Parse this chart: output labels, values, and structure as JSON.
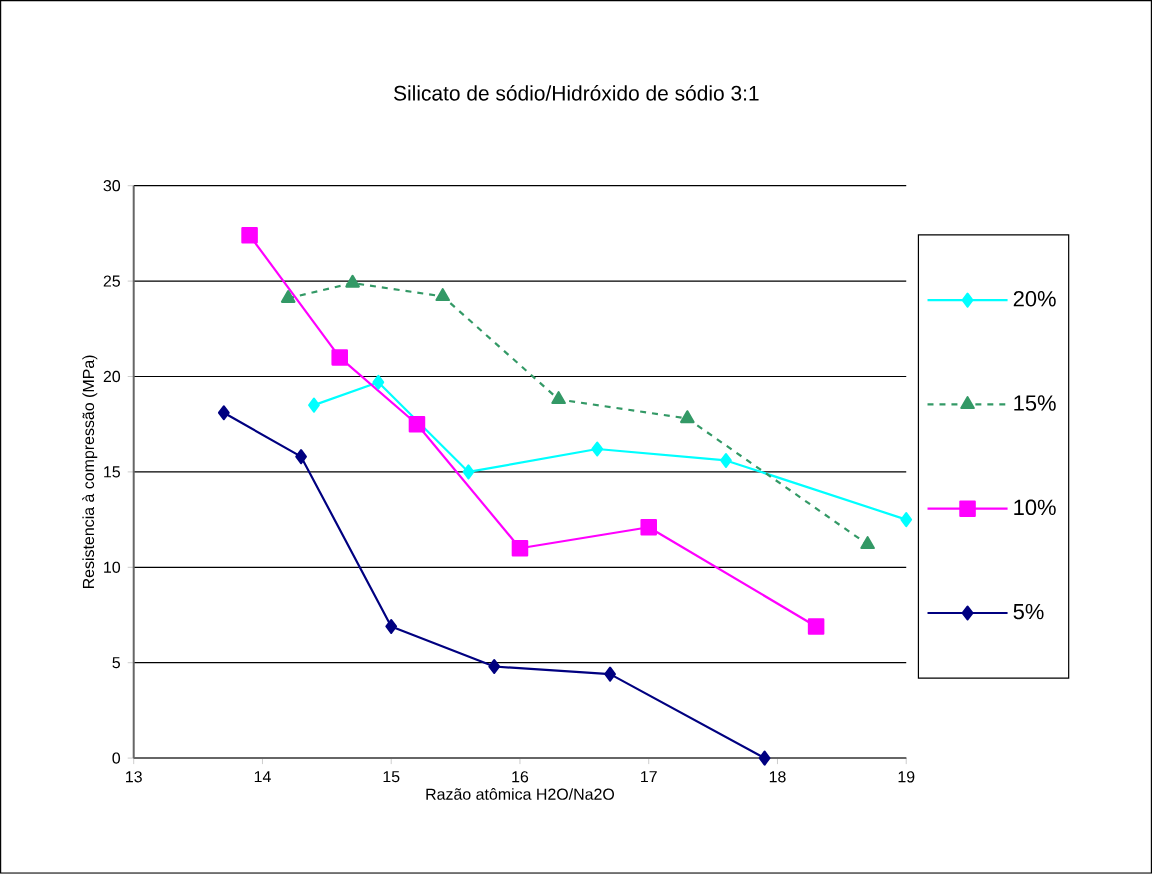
{
  "chart_data": {
    "type": "line",
    "title": "Silicato de sódio/Hidróxido de sódio 3:1",
    "xlabel": "Razão atômica H2O/Na2O",
    "ylabel": "Resistencia à compressão (MPa)",
    "xlim": [
      13,
      19
    ],
    "xticks": [
      13,
      14,
      15,
      16,
      17,
      18,
      19
    ],
    "ylim": [
      0,
      30
    ],
    "yticks": [
      0,
      5,
      10,
      15,
      20,
      25,
      30
    ],
    "grid": "y",
    "legend": "right",
    "series": [
      {
        "name": "20%",
        "color": "#00ffff",
        "marker": "diamond",
        "line_style": "solid",
        "x": [
          14.4,
          14.9,
          15.6,
          16.6,
          17.6,
          19.0
        ],
        "values": [
          18.5,
          19.7,
          15.0,
          16.2,
          15.6,
          12.5
        ]
      },
      {
        "name": "15%",
        "color": "#339966",
        "marker": "triangle",
        "line_style": "dashed",
        "x": [
          14.2,
          14.7,
          15.4,
          16.3,
          17.3,
          18.7
        ],
        "values": [
          24.1,
          24.9,
          24.2,
          18.8,
          17.8,
          11.2
        ]
      },
      {
        "name": "10%",
        "color": "#ff00ff",
        "marker": "square",
        "line_style": "solid",
        "x": [
          13.9,
          14.6,
          15.2,
          16.0,
          17.0,
          18.3
        ],
        "values": [
          27.4,
          21.0,
          17.5,
          11.0,
          12.1,
          6.9
        ]
      },
      {
        "name": "5%",
        "color": "#000080",
        "marker": "diamond",
        "line_style": "solid",
        "x": [
          13.7,
          14.3,
          15.0,
          15.8,
          16.7,
          17.9
        ],
        "values": [
          18.1,
          15.8,
          6.9,
          4.8,
          4.4,
          0
        ]
      }
    ]
  }
}
